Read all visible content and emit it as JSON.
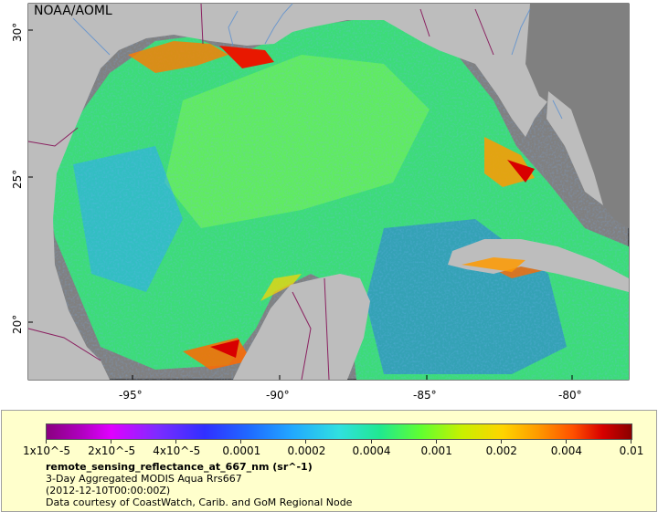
{
  "map": {
    "organization": "NOAA/AOML",
    "longitude_labels": [
      "-95°",
      "-90°",
      "-85°",
      "-80°"
    ],
    "latitude_labels": [
      "30°",
      "25°",
      "20°"
    ],
    "colors": {
      "land": "#bdbdbd",
      "no_data": "#808080",
      "ocean_dominant": "#3cdc78",
      "border_lines": "#8a2060",
      "rivers": "#5a8fd0"
    }
  },
  "legend": {
    "ticks": [
      "1x10^-5",
      "2x10^-5",
      "4x10^-5",
      "0.0001",
      "0.0002",
      "0.0004",
      "0.001",
      "0.002",
      "0.004",
      "0.01"
    ],
    "title": "remote_sensing_reflectance_at_667_nm (sr^-1)",
    "line1": "3-Day Aggregated MODIS Aqua Rrs667",
    "line2": "(2012-12-10T00:00:00Z)",
    "line3": "Data courtesy of CoastWatch, Carib. and GoM Regional Node",
    "colormap": [
      "#8a0080",
      "#e000ff",
      "#3030ff",
      "#22a8ff",
      "#30e0e0",
      "#60ff30",
      "#ffd400",
      "#ff5000",
      "#d80000",
      "#8a0000"
    ]
  }
}
